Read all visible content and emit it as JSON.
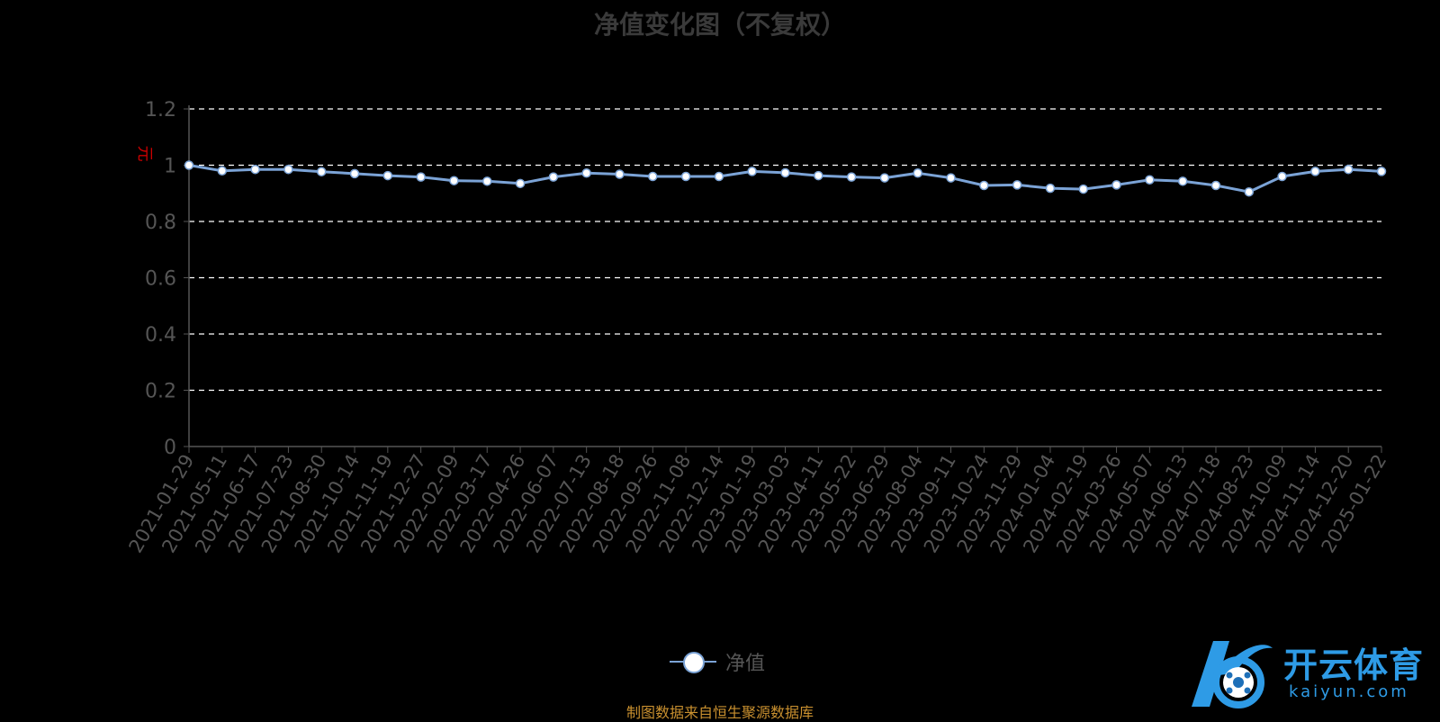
{
  "title": "净值变化图（不复权）",
  "legend_label": "净值",
  "source": "制图数据来自恒生聚源数据库",
  "watermark": {
    "brand": "开云体育",
    "domain": "kaiyun.com"
  },
  "colors": {
    "line": "#7ba3d6",
    "marker": "#ffffff",
    "unit": "#cc0000",
    "grid": "#ffffff",
    "axis": "#555555",
    "title": "#3a3a3a",
    "source": "#c9902f",
    "watermark": "#2e9be6"
  },
  "chart_data": {
    "type": "line",
    "title": "净值变化图（不复权）",
    "ylabel": "元",
    "ylim": [
      0,
      1.2
    ],
    "yticks": [
      "0",
      "0.2",
      "0.4",
      "0.6",
      "0.8",
      "1",
      "1.2"
    ],
    "grid": true,
    "legend_position": "bottom",
    "categories": [
      "2021-01-29",
      "2021-05-11",
      "2021-06-17",
      "2021-07-23",
      "2021-08-30",
      "2021-10-14",
      "2021-11-19",
      "2021-12-27",
      "2022-02-09",
      "2022-03-17",
      "2022-04-26",
      "2022-06-07",
      "2022-07-13",
      "2022-08-18",
      "2022-09-26",
      "2022-11-08",
      "2022-12-14",
      "2023-01-19",
      "2023-03-03",
      "2023-04-11",
      "2023-05-22",
      "2023-06-29",
      "2023-08-04",
      "2023-09-11",
      "2023-10-24",
      "2023-11-29",
      "2024-01-04",
      "2024-02-19",
      "2024-03-26",
      "2024-05-07",
      "2024-06-13",
      "2024-07-18",
      "2024-08-23",
      "2024-10-09",
      "2024-11-14",
      "2024-12-20",
      "2025-01-22"
    ],
    "series": [
      {
        "name": "净值",
        "values": [
          1.0,
          0.98,
          0.985,
          0.985,
          0.977,
          0.97,
          0.963,
          0.958,
          0.945,
          0.943,
          0.935,
          0.958,
          0.972,
          0.968,
          0.96,
          0.96,
          0.96,
          0.978,
          0.973,
          0.963,
          0.958,
          0.955,
          0.972,
          0.955,
          0.928,
          0.93,
          0.918,
          0.915,
          0.93,
          0.948,
          0.943,
          0.928,
          0.905,
          0.96,
          0.978,
          0.985,
          0.978
        ]
      }
    ]
  }
}
